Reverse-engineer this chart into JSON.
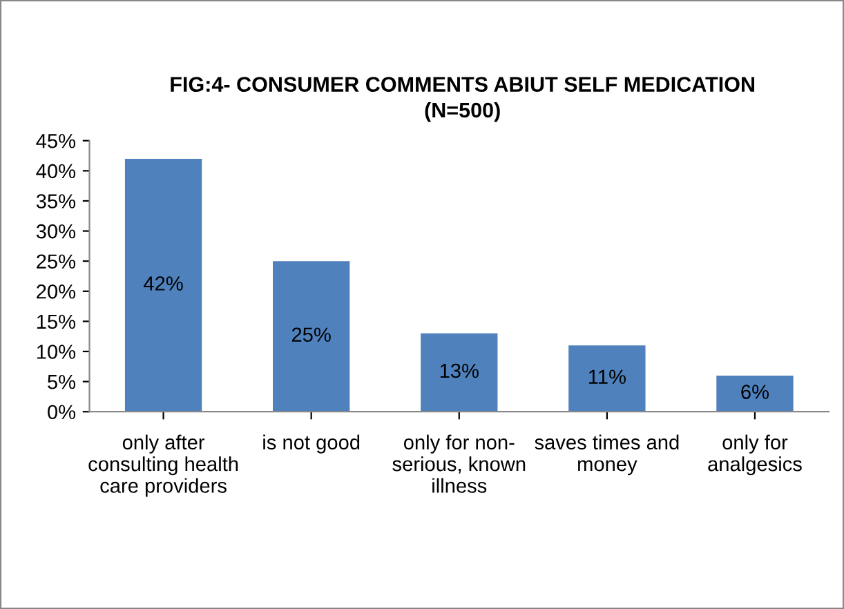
{
  "chart_data": {
    "type": "bar",
    "title": "FIG:4- CONSUMER COMMENTS ABIUT SELF MEDICATION\n(N=500)",
    "categories": [
      "only after\nconsulting health\ncare providers",
      "is not good",
      "only for non-\nserious, known\nillness",
      "saves times and\nmoney",
      "only for\nanalgesics"
    ],
    "values": [
      42,
      25,
      13,
      11,
      6
    ],
    "value_labels": [
      "42%",
      "25%",
      "13%",
      "11%",
      "6%"
    ],
    "color": "#4f81bd",
    "ylim": [
      0,
      45
    ],
    "yticks": [
      {
        "value": 0,
        "label": "0%"
      },
      {
        "value": 5,
        "label": "5%"
      },
      {
        "value": 10,
        "label": "10%"
      },
      {
        "value": 15,
        "label": "15%"
      },
      {
        "value": 20,
        "label": "20%"
      },
      {
        "value": 25,
        "label": "25%"
      },
      {
        "value": 30,
        "label": "30%"
      },
      {
        "value": 35,
        "label": "35%"
      },
      {
        "value": 40,
        "label": "40%"
      },
      {
        "value": 45,
        "label": "45%"
      }
    ],
    "grid": false
  }
}
